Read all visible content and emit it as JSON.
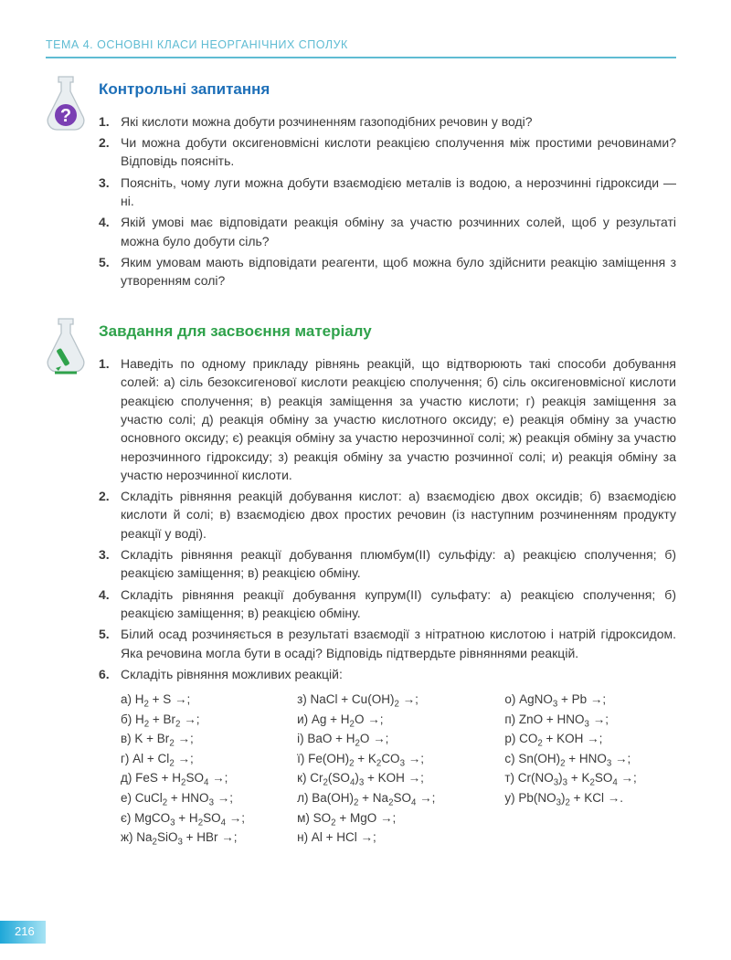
{
  "chapter_header": "ТЕМА 4. ОСНОВНІ КЛАСИ НЕОРГАНІЧНИХ СПОЛУК",
  "page_number": "216",
  "control": {
    "title": "Контрольні запитання",
    "items": [
      "Які кислоти можна добути розчиненням газоподібних речовин у воді?",
      "Чи можна добути оксигеновмісні кислоти реакцією сполучення між простими речовинами? Відповідь поясніть.",
      "Поясніть, чому луги можна добути взаємодією металів із водою, а нерозчинні гідроксиди — ні.",
      "Якій умові має відповідати реакція обміну за участю розчинних солей, щоб у результаті можна було добути сіль?",
      "Яким умовам мають відповідати реагенти, щоб можна було здійснити реакцію заміщення з утворенням солі?"
    ]
  },
  "tasks": {
    "title": "Завдання для засвоєння матеріалу",
    "items": [
      "Наведіть по одному прикладу рівнянь реакцій, що відтворюють такі способи добування солей: а) сіль безоксигенової кислоти реакцією сполучення; б) сіль оксигеновмісної кислоти реакцією сполучення; в) реакція заміщення за участю кислоти; г) реакція заміщення за участю солі; д) реакція обміну за участю кислотного оксиду; е) реакція обміну за участю основного оксиду; є) реакція обміну за участю нерозчинної солі; ж) реакція обміну за участю нерозчинного гідроксиду; з) реакція обміну за участю розчинної солі; и) реакція обміну за участю нерозчинної кислоти.",
      "Складіть рівняння реакцій добування кислот: а) взаємодією двох оксидів; б) взаємодією кислоти й солі; в) взаємодією двох простих речовин (із наступним розчиненням продукту реакції у воді).",
      "Складіть рівняння реакції добування плюмбум(II) сульфіду: а) реакцією сполучення; б) реакцією заміщення; в) реакцією обміну.",
      "Складіть рівняння реакції добування купрум(II) сульфату: а) реакцією сполучення; б) реакцією заміщення; в) реакцією обміну.",
      "Білий осад розчиняється в результаті взаємодії з нітратною кислотою і натрій гідроксидом. Яка речовина могла бути в осаді? Відповідь підтвердьте рівняннями реакцій.",
      "Складіть рівняння можливих реакцій:"
    ]
  },
  "reactions": {
    "col1": [
      {
        "l": "а) ",
        "f": "H<sub>2</sub> + S →;"
      },
      {
        "l": "б) ",
        "f": "H<sub>2</sub> + Br<sub>2</sub> →;"
      },
      {
        "l": "в) ",
        "f": "K + Br<sub>2</sub> →;"
      },
      {
        "l": "г) ",
        "f": "Al + Cl<sub>2</sub> →;"
      },
      {
        "l": "д) ",
        "f": "FeS + H<sub>2</sub>SO<sub>4</sub> →;"
      },
      {
        "l": "е) ",
        "f": "CuCl<sub>2</sub> + HNO<sub>3</sub> →;"
      },
      {
        "l": "є) ",
        "f": "MgCO<sub>3</sub> + H<sub>2</sub>SO<sub>4</sub> →;"
      },
      {
        "l": "ж) ",
        "f": "Na<sub>2</sub>SiO<sub>3</sub> + HBr →;"
      }
    ],
    "col2": [
      {
        "l": "з) ",
        "f": "NaCl + Cu(OH)<sub>2</sub> →;"
      },
      {
        "l": "и) ",
        "f": "Ag + H<sub>2</sub>O →;"
      },
      {
        "l": "і) ",
        "f": "BaO + H<sub>2</sub>O →;"
      },
      {
        "l": "ї) ",
        "f": "Fe(OH)<sub>2</sub> + K<sub>2</sub>CO<sub>3</sub> →;"
      },
      {
        "l": "к) ",
        "f": "Cr<sub>2</sub>(SO<sub>4</sub>)<sub>3</sub> + KOH →;"
      },
      {
        "l": "л) ",
        "f": "Ba(OH)<sub>2</sub> + Na<sub>2</sub>SO<sub>4</sub> →;"
      },
      {
        "l": "м) ",
        "f": "SO<sub>2</sub> + MgO →;"
      },
      {
        "l": "н) ",
        "f": "Al + HCl →;"
      }
    ],
    "col3": [
      {
        "l": "о) ",
        "f": "AgNO<sub>3</sub> + Pb →;"
      },
      {
        "l": "п) ",
        "f": "ZnO + HNO<sub>3</sub> →;"
      },
      {
        "l": "р) ",
        "f": "CO<sub>2</sub> + KOH →;"
      },
      {
        "l": "с) ",
        "f": "Sn(OH)<sub>2</sub> + HNO<sub>3</sub> →;"
      },
      {
        "l": "т) ",
        "f": "Cr(NO<sub>3</sub>)<sub>3</sub> + K<sub>2</sub>SO<sub>4</sub> →;"
      },
      {
        "l": "у) ",
        "f": "Pb(NO<sub>3</sub>)<sub>2</sub> + KCl →."
      }
    ]
  }
}
